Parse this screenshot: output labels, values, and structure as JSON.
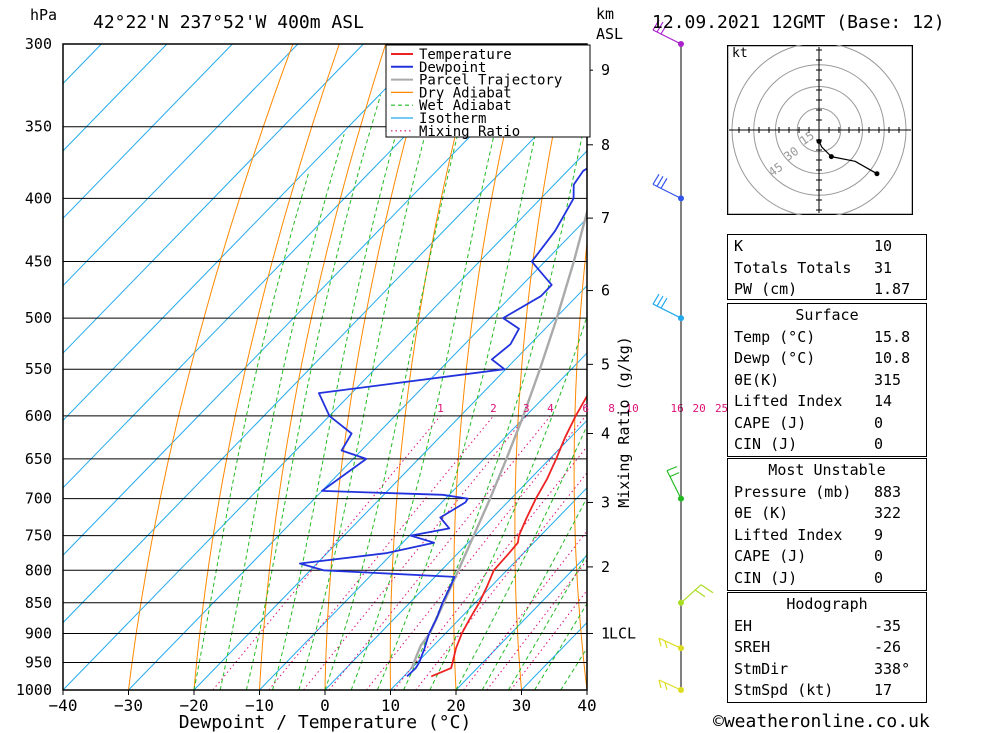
{
  "header": {
    "pressure_unit": "hPa",
    "location": "42°22'N  237°52'W  400m  ASL",
    "km_label": "km",
    "asl_label": "ASL",
    "datetime": "12.09.2021  12GMT  (Base: 12)"
  },
  "chart_data": {
    "type": "skew-t",
    "xlabel": "Dewpoint / Temperature (°C)",
    "ylabel_left": "hPa",
    "ylabel_mixing": "Mixing Ratio (g/kg)",
    "xlim": [
      -40,
      40
    ],
    "ylim": [
      1000,
      300
    ],
    "x_ticks": [
      -40,
      -30,
      -20,
      -10,
      0,
      10,
      20,
      30,
      40
    ],
    "pressure_levels": [
      300,
      350,
      400,
      450,
      500,
      550,
      600,
      650,
      700,
      750,
      800,
      850,
      900,
      950,
      1000
    ],
    "km_ticks": [
      {
        "km": "1",
        "p": 900,
        "extra": "LCL"
      },
      {
        "km": "2",
        "p": 795
      },
      {
        "km": "3",
        "p": 705
      },
      {
        "km": "4",
        "p": 620
      },
      {
        "km": "5",
        "p": 545
      },
      {
        "km": "6",
        "p": 475
      },
      {
        "km": "7",
        "p": 415
      },
      {
        "km": "8",
        "p": 362
      },
      {
        "km": "9",
        "p": 315
      }
    ],
    "mixing_ratio_labels": [
      "1",
      "2",
      "3",
      "4",
      "6",
      "8",
      "10",
      "16",
      "20",
      "25"
    ],
    "mixing_ratio_values": [
      1,
      2,
      3,
      4,
      6,
      8,
      10,
      16,
      20,
      25
    ],
    "legend": [
      "Temperature",
      "Dewpoint",
      "Parcel Trajectory",
      "Dry Adiabat",
      "Wet Adiabat",
      "Isotherm",
      "Mixing Ratio"
    ],
    "colors": {
      "temperature": "#ee2222",
      "dewpoint": "#2233dd",
      "parcel": "#aaaaaa",
      "dry_adiabat": "#ff8800",
      "wet_adiabat": "#22bb22",
      "isotherm": "#22aaee",
      "mixing_ratio": "#dd1177"
    },
    "series": [
      {
        "name": "Temperature",
        "points": [
          [
            975,
            14.2
          ],
          [
            960,
            16.0
          ],
          [
            950,
            15.4
          ],
          [
            925,
            13.8
          ],
          [
            900,
            12.5
          ],
          [
            875,
            11.5
          ],
          [
            850,
            10.6
          ],
          [
            825,
            9.4
          ],
          [
            800,
            8.0
          ],
          [
            775,
            7.8
          ],
          [
            760,
            7.6
          ],
          [
            750,
            6.7
          ],
          [
            725,
            5.2
          ],
          [
            700,
            3.8
          ],
          [
            675,
            2.6
          ],
          [
            650,
            1.0
          ],
          [
            625,
            -0.8
          ],
          [
            600,
            -2.4
          ],
          [
            575,
            -3.8
          ],
          [
            550,
            -6.0
          ],
          [
            525,
            -8.4
          ],
          [
            500,
            -10.2
          ],
          [
            475,
            -13.0
          ],
          [
            450,
            -16.4
          ],
          [
            425,
            -20.2
          ],
          [
            400,
            -24.2
          ],
          [
            375,
            -28.2
          ],
          [
            350,
            -32.8
          ],
          [
            325,
            -37.6
          ],
          [
            300,
            -42.0
          ]
        ]
      },
      {
        "name": "Dewpoint",
        "points": [
          [
            975,
            10.5
          ],
          [
            960,
            10.6
          ],
          [
            950,
            10.3
          ],
          [
            925,
            9.0
          ],
          [
            900,
            7.5
          ],
          [
            875,
            6.4
          ],
          [
            850,
            5.0
          ],
          [
            825,
            3.8
          ],
          [
            810,
            3.0
          ],
          [
            800,
            -18.0
          ],
          [
            790,
            -22.6
          ],
          [
            775,
            -11.0
          ],
          [
            760,
            -5.2
          ],
          [
            750,
            -9.8
          ],
          [
            740,
            -5.0
          ],
          [
            725,
            -8.0
          ],
          [
            715,
            -7.2
          ],
          [
            705,
            -6.4
          ],
          [
            700,
            -6.6
          ],
          [
            695,
            -11.0
          ],
          [
            690,
            -30.0
          ],
          [
            650,
            -28.0
          ],
          [
            640,
            -33.0
          ],
          [
            620,
            -34.0
          ],
          [
            600,
            -40.0
          ],
          [
            575,
            -45.0
          ],
          [
            550,
            -20.2
          ],
          [
            540,
            -23.6
          ],
          [
            525,
            -23.0
          ],
          [
            510,
            -24.0
          ],
          [
            500,
            -28.0
          ],
          [
            480,
            -25.5
          ],
          [
            470,
            -25.5
          ],
          [
            450,
            -32.0
          ],
          [
            425,
            -33.0
          ],
          [
            400,
            -35.0
          ],
          [
            390,
            -37.0
          ],
          [
            380,
            -37.6
          ],
          [
            370,
            -36.2
          ],
          [
            360,
            -40.0
          ],
          [
            340,
            -41.2
          ],
          [
            325,
            -43.0
          ],
          [
            300,
            -51.0
          ]
        ]
      },
      {
        "name": "Parcel Trajectory",
        "points": [
          [
            960,
            10.0
          ],
          [
            940,
            9.0
          ],
          [
            920,
            8.0
          ],
          [
            900,
            7.6
          ],
          [
            850,
            5.2
          ],
          [
            800,
            2.6
          ],
          [
            750,
            -0.2
          ],
          [
            700,
            -3.2
          ],
          [
            650,
            -6.6
          ],
          [
            600,
            -10.4
          ],
          [
            550,
            -14.8
          ],
          [
            500,
            -19.8
          ],
          [
            450,
            -25.6
          ],
          [
            400,
            -32.4
          ],
          [
            350,
            -40.4
          ],
          [
            300,
            -50.0
          ]
        ]
      }
    ],
    "wind_barbs": [
      {
        "p": 1000,
        "color": "#dddd22"
      },
      {
        "p": 925,
        "color": "#dddd22"
      },
      {
        "p": 850,
        "color": "#aadd22"
      },
      {
        "p": 700,
        "color": "#22bb22"
      },
      {
        "p": 500,
        "color": "#22aaee"
      },
      {
        "p": 400,
        "color": "#3355ee"
      },
      {
        "p": 300,
        "color": "#aa22cc"
      }
    ]
  },
  "hodograph": {
    "unit": "kt",
    "ring_labels": [
      "15",
      "30",
      "45"
    ],
    "trace": [
      [
        0,
        -12
      ],
      [
        2,
        -16
      ],
      [
        3,
        -18
      ],
      [
        13,
        -28
      ],
      [
        38,
        -33
      ],
      [
        61,
        -46
      ]
    ],
    "colors": {
      "trace": "#000000"
    }
  },
  "indices": {
    "top": [
      {
        "label": "K",
        "value": "10"
      },
      {
        "label": "Totals Totals",
        "value": "31"
      },
      {
        "label": "PW (cm)",
        "value": "1.87"
      }
    ],
    "surface": {
      "title": "Surface",
      "rows": [
        {
          "label": "Temp (°C)",
          "value": "15.8"
        },
        {
          "label": "Dewp (°C)",
          "value": "10.8"
        },
        {
          "label": "θE(K)",
          "value": "315"
        },
        {
          "label": "Lifted Index",
          "value": "14"
        },
        {
          "label": "CAPE (J)",
          "value": "0"
        },
        {
          "label": "CIN (J)",
          "value": "0"
        }
      ]
    },
    "most_unstable": {
      "title": "Most Unstable",
      "rows": [
        {
          "label": "Pressure (mb)",
          "value": "883"
        },
        {
          "label": "θE (K)",
          "value": "322"
        },
        {
          "label": "Lifted Index",
          "value": "9"
        },
        {
          "label": "CAPE (J)",
          "value": "0"
        },
        {
          "label": "CIN (J)",
          "value": "0"
        }
      ]
    },
    "hodograph_box": {
      "title": "Hodograph",
      "rows": [
        {
          "label": "EH",
          "value": "-35"
        },
        {
          "label": "SREH",
          "value": "-26"
        },
        {
          "label": "StmDir",
          "value": "338°"
        },
        {
          "label": "StmSpd (kt)",
          "value": "17"
        }
      ]
    }
  },
  "footer": {
    "copyright": "©weatheronline.co.uk"
  }
}
